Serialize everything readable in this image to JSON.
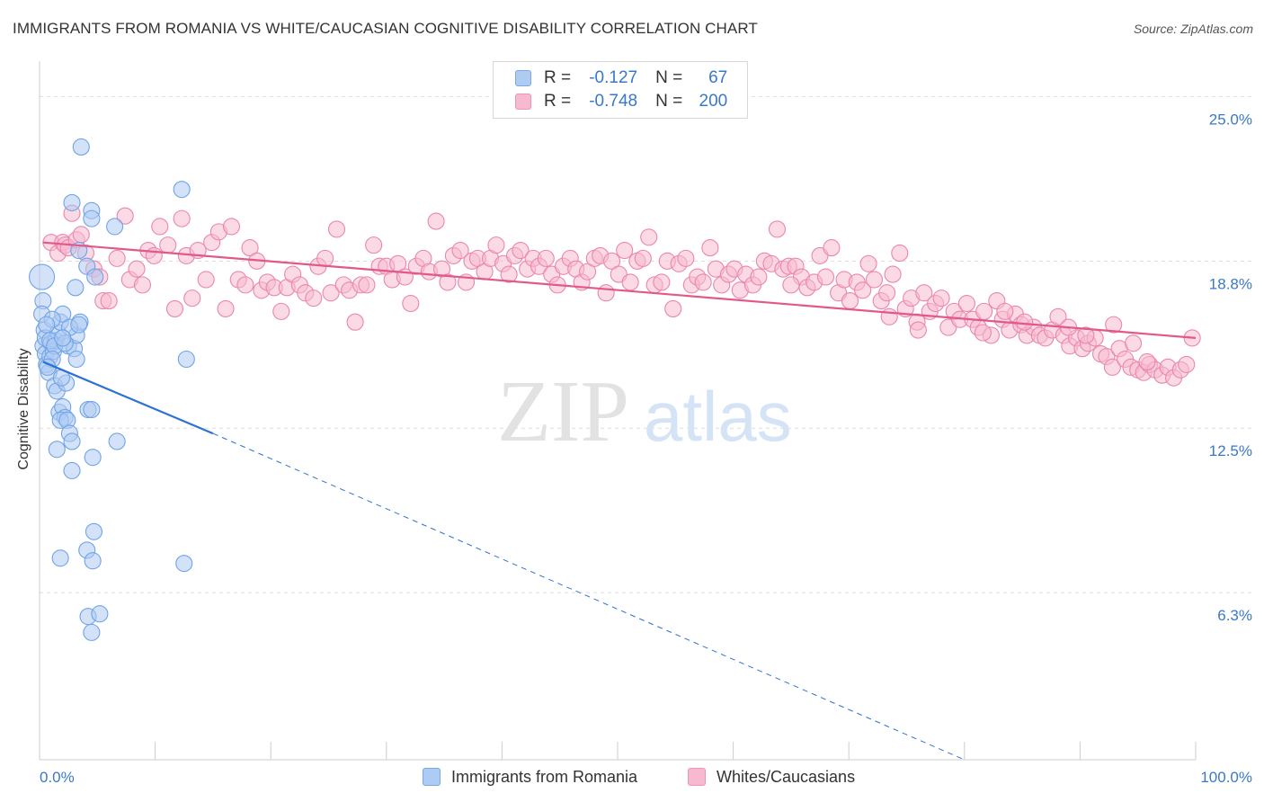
{
  "header": {
    "title": "IMMIGRANTS FROM ROMANIA VS WHITE/CAUCASIAN COGNITIVE DISABILITY CORRELATION CHART",
    "source": "Source: ZipAtlas.com"
  },
  "watermark": {
    "zip": "ZIP",
    "atlas": "atlas"
  },
  "legend": {
    "rows": [
      {
        "r_key": "R =",
        "r_value": "-0.127",
        "n_key": "N =",
        "n_value": "67",
        "color": "#aecbf2"
      },
      {
        "r_key": "R =",
        "r_value": "-0.748",
        "n_key": "N =",
        "n_value": "200",
        "color": "#f7b9cf"
      }
    ]
  },
  "bottom_legend": {
    "items": [
      {
        "label": "Immigrants from Romania",
        "color": "#aecbf2"
      },
      {
        "label": "Whites/Caucasians",
        "color": "#f7b9cf"
      }
    ]
  },
  "chart_data": {
    "type": "scatter",
    "title": "IMMIGRANTS FROM ROMANIA VS WHITE/CAUCASIAN COGNITIVE DISABILITY CORRELATION CHART",
    "xlabel": "",
    "ylabel": "Cognitive Disability",
    "xlim": [
      0,
      100
    ],
    "ylim": [
      0,
      26.2
    ],
    "x_tick_labels": [
      "0.0%",
      "100.0%"
    ],
    "y_ticks": [
      {
        "value": 6.3,
        "label": "6.3%"
      },
      {
        "value": 12.5,
        "label": "12.5%"
      },
      {
        "value": 18.8,
        "label": "18.8%"
      },
      {
        "value": 25.0,
        "label": "25.0%"
      }
    ],
    "grid": "horizontal dashed",
    "legend_position": "top-center",
    "series": [
      {
        "name": "Immigrants from Romania",
        "color": "#6fa4e6",
        "fill": "#aecbf2",
        "trend": {
          "x0": 0.3,
          "y0": 15.0,
          "x1": 15.0,
          "y1": 12.3,
          "dashed_to_x": 80.0,
          "dashed_to_y": 0.0,
          "color": "#2c72d4"
        },
        "points": [
          [
            0.2,
            18.2
          ],
          [
            0.3,
            17.3
          ],
          [
            0.2,
            16.8
          ],
          [
            0.4,
            16.2
          ],
          [
            0.3,
            15.6
          ],
          [
            0.5,
            15.3
          ],
          [
            0.6,
            14.9
          ],
          [
            0.8,
            14.6
          ],
          [
            0.5,
            15.9
          ],
          [
            0.9,
            15.2
          ],
          [
            1.0,
            15.7
          ],
          [
            1.2,
            15.4
          ],
          [
            1.4,
            15.8
          ],
          [
            1.6,
            16.1
          ],
          [
            1.8,
            16.5
          ],
          [
            2.0,
            16.8
          ],
          [
            1.1,
            16.6
          ],
          [
            1.3,
            14.1
          ],
          [
            1.5,
            13.9
          ],
          [
            1.7,
            13.1
          ],
          [
            2.0,
            13.3
          ],
          [
            2.2,
            12.9
          ],
          [
            1.8,
            12.8
          ],
          [
            2.4,
            12.8
          ],
          [
            2.6,
            12.3
          ],
          [
            2.8,
            12.0
          ],
          [
            2.3,
            14.2
          ],
          [
            2.5,
            15.6
          ],
          [
            3.0,
            15.5
          ],
          [
            3.2,
            16.0
          ],
          [
            3.5,
            16.5
          ],
          [
            3.4,
            19.2
          ],
          [
            3.1,
            17.8
          ],
          [
            3.6,
            23.1
          ],
          [
            2.8,
            21.0
          ],
          [
            4.5,
            20.7
          ],
          [
            4.5,
            20.4
          ],
          [
            4.1,
            18.6
          ],
          [
            4.8,
            18.2
          ],
          [
            6.5,
            20.1
          ],
          [
            3.2,
            15.1
          ],
          [
            4.2,
            13.2
          ],
          [
            4.5,
            13.2
          ],
          [
            1.5,
            11.7
          ],
          [
            4.6,
            11.4
          ],
          [
            2.8,
            10.9
          ],
          [
            6.7,
            12.0
          ],
          [
            12.3,
            21.5
          ],
          [
            12.7,
            15.1
          ],
          [
            4.7,
            8.6
          ],
          [
            4.1,
            7.9
          ],
          [
            1.8,
            7.6
          ],
          [
            4.6,
            7.5
          ],
          [
            12.5,
            7.4
          ],
          [
            4.2,
            5.4
          ],
          [
            5.2,
            5.5
          ],
          [
            4.5,
            4.8
          ],
          [
            0.9,
            15.8
          ],
          [
            1.3,
            15.6
          ],
          [
            2.2,
            15.7
          ],
          [
            0.6,
            16.4
          ],
          [
            1.1,
            15.1
          ],
          [
            2.6,
            16.3
          ],
          [
            1.9,
            14.4
          ],
          [
            3.4,
            16.4
          ],
          [
            2.0,
            15.9
          ],
          [
            0.7,
            14.8
          ]
        ]
      },
      {
        "name": "Whites/Caucasians",
        "color": "#eb86ab",
        "fill": "#f7b9cf",
        "trend": {
          "x0": 0.3,
          "y0": 19.5,
          "x1": 100.0,
          "y1": 15.9,
          "color": "#e2588a"
        },
        "points": [
          [
            1.0,
            19.5
          ],
          [
            1.6,
            19.1
          ],
          [
            2.0,
            19.5
          ],
          [
            2.2,
            19.4
          ],
          [
            2.5,
            19.3
          ],
          [
            2.8,
            20.6
          ],
          [
            3.2,
            19.6
          ],
          [
            3.6,
            19.8
          ],
          [
            4.0,
            19.1
          ],
          [
            4.7,
            18.5
          ],
          [
            5.2,
            18.2
          ],
          [
            5.5,
            17.3
          ],
          [
            6.0,
            17.3
          ],
          [
            6.7,
            18.9
          ],
          [
            7.4,
            20.5
          ],
          [
            7.8,
            18.1
          ],
          [
            8.4,
            18.5
          ],
          [
            8.9,
            17.9
          ],
          [
            9.4,
            19.2
          ],
          [
            9.9,
            19.0
          ],
          [
            10.4,
            20.1
          ],
          [
            11.1,
            19.4
          ],
          [
            11.7,
            17.0
          ],
          [
            12.3,
            20.4
          ],
          [
            12.7,
            19.0
          ],
          [
            13.2,
            17.4
          ],
          [
            13.7,
            19.2
          ],
          [
            14.4,
            18.1
          ],
          [
            14.9,
            19.5
          ],
          [
            15.5,
            19.9
          ],
          [
            16.1,
            17.0
          ],
          [
            16.6,
            20.1
          ],
          [
            17.2,
            18.1
          ],
          [
            17.8,
            17.9
          ],
          [
            18.2,
            19.3
          ],
          [
            18.8,
            18.8
          ],
          [
            19.2,
            17.7
          ],
          [
            19.7,
            18.0
          ],
          [
            20.3,
            17.8
          ],
          [
            20.9,
            16.9
          ],
          [
            21.4,
            17.8
          ],
          [
            21.9,
            18.3
          ],
          [
            22.5,
            17.9
          ],
          [
            23.0,
            17.6
          ],
          [
            23.7,
            17.4
          ],
          [
            24.1,
            18.6
          ],
          [
            24.7,
            18.9
          ],
          [
            25.2,
            17.6
          ],
          [
            25.7,
            20.0
          ],
          [
            26.3,
            17.9
          ],
          [
            26.8,
            17.7
          ],
          [
            27.3,
            16.5
          ],
          [
            27.8,
            17.9
          ],
          [
            28.3,
            17.9
          ],
          [
            28.9,
            19.4
          ],
          [
            29.4,
            18.6
          ],
          [
            30.0,
            18.6
          ],
          [
            30.5,
            18.1
          ],
          [
            31.0,
            18.7
          ],
          [
            31.6,
            18.2
          ],
          [
            32.1,
            17.2
          ],
          [
            32.6,
            18.6
          ],
          [
            33.2,
            18.9
          ],
          [
            33.7,
            18.4
          ],
          [
            34.3,
            20.3
          ],
          [
            34.8,
            18.5
          ],
          [
            35.3,
            18.0
          ],
          [
            35.8,
            19.0
          ],
          [
            36.4,
            19.2
          ],
          [
            36.9,
            18.0
          ],
          [
            37.4,
            18.8
          ],
          [
            37.9,
            18.9
          ],
          [
            38.5,
            18.4
          ],
          [
            39.0,
            18.9
          ],
          [
            39.5,
            19.4
          ],
          [
            40.1,
            18.7
          ],
          [
            40.6,
            18.3
          ],
          [
            41.1,
            19.0
          ],
          [
            41.6,
            19.2
          ],
          [
            42.2,
            18.5
          ],
          [
            42.7,
            18.9
          ],
          [
            43.2,
            18.6
          ],
          [
            43.8,
            18.9
          ],
          [
            44.3,
            18.3
          ],
          [
            44.8,
            17.9
          ],
          [
            45.3,
            18.6
          ],
          [
            45.9,
            18.9
          ],
          [
            46.4,
            18.5
          ],
          [
            46.9,
            18.0
          ],
          [
            47.4,
            18.4
          ],
          [
            48.0,
            18.9
          ],
          [
            48.5,
            19.0
          ],
          [
            49.0,
            17.6
          ],
          [
            49.5,
            18.8
          ],
          [
            50.1,
            18.3
          ],
          [
            50.6,
            19.2
          ],
          [
            51.1,
            18.0
          ],
          [
            51.7,
            18.8
          ],
          [
            52.2,
            18.9
          ],
          [
            52.7,
            19.7
          ],
          [
            53.2,
            17.9
          ],
          [
            53.8,
            18.0
          ],
          [
            54.3,
            18.8
          ],
          [
            54.8,
            17.0
          ],
          [
            55.3,
            18.7
          ],
          [
            55.9,
            18.9
          ],
          [
            56.4,
            17.9
          ],
          [
            56.9,
            18.2
          ],
          [
            57.4,
            18.0
          ],
          [
            58.0,
            19.3
          ],
          [
            58.5,
            18.5
          ],
          [
            59.0,
            17.9
          ],
          [
            59.6,
            18.3
          ],
          [
            60.1,
            18.5
          ],
          [
            60.6,
            17.7
          ],
          [
            61.1,
            18.3
          ],
          [
            61.7,
            17.9
          ],
          [
            62.2,
            18.2
          ],
          [
            62.7,
            18.8
          ],
          [
            63.3,
            18.7
          ],
          [
            63.8,
            20.0
          ],
          [
            64.3,
            18.5
          ],
          [
            64.8,
            18.6
          ],
          [
            65.4,
            18.6
          ],
          [
            65.9,
            18.2
          ],
          [
            66.4,
            17.8
          ],
          [
            67.0,
            18.0
          ],
          [
            67.5,
            19.0
          ],
          [
            68.0,
            18.2
          ],
          [
            68.5,
            19.3
          ],
          [
            69.1,
            17.6
          ],
          [
            69.6,
            18.1
          ],
          [
            70.1,
            17.3
          ],
          [
            70.7,
            18.0
          ],
          [
            71.2,
            17.7
          ],
          [
            71.7,
            18.7
          ],
          [
            72.2,
            18.1
          ],
          [
            72.8,
            17.3
          ],
          [
            73.3,
            17.6
          ],
          [
            73.8,
            18.3
          ],
          [
            74.4,
            19.1
          ],
          [
            74.9,
            17.0
          ],
          [
            75.4,
            17.4
          ],
          [
            75.9,
            16.5
          ],
          [
            76.5,
            17.6
          ],
          [
            77.0,
            16.9
          ],
          [
            77.5,
            17.2
          ],
          [
            78.0,
            17.4
          ],
          [
            78.6,
            16.3
          ],
          [
            79.1,
            16.9
          ],
          [
            79.6,
            16.6
          ],
          [
            80.2,
            17.2
          ],
          [
            80.7,
            16.6
          ],
          [
            81.2,
            16.3
          ],
          [
            81.7,
            16.9
          ],
          [
            82.3,
            16.0
          ],
          [
            82.8,
            17.3
          ],
          [
            83.3,
            16.6
          ],
          [
            83.9,
            16.2
          ],
          [
            84.4,
            16.8
          ],
          [
            84.9,
            16.4
          ],
          [
            85.4,
            16.0
          ],
          [
            86.0,
            16.3
          ],
          [
            86.5,
            16.0
          ],
          [
            87.0,
            15.9
          ],
          [
            87.6,
            16.2
          ],
          [
            88.1,
            16.7
          ],
          [
            88.6,
            16.0
          ],
          [
            89.1,
            15.6
          ],
          [
            89.7,
            15.9
          ],
          [
            90.2,
            15.5
          ],
          [
            90.7,
            15.7
          ],
          [
            91.3,
            15.9
          ],
          [
            91.8,
            15.3
          ],
          [
            92.3,
            15.2
          ],
          [
            92.8,
            14.8
          ],
          [
            93.4,
            15.5
          ],
          [
            93.9,
            15.1
          ],
          [
            94.4,
            14.8
          ],
          [
            95.0,
            14.7
          ],
          [
            95.5,
            14.6
          ],
          [
            96.0,
            14.9
          ],
          [
            96.5,
            14.7
          ],
          [
            97.1,
            14.5
          ],
          [
            97.6,
            14.8
          ],
          [
            98.1,
            14.4
          ],
          [
            98.7,
            14.7
          ],
          [
            99.2,
            14.9
          ],
          [
            99.7,
            15.9
          ],
          [
            76.0,
            16.2
          ],
          [
            81.6,
            16.1
          ],
          [
            85.2,
            16.5
          ],
          [
            90.5,
            16.0
          ],
          [
            94.6,
            15.7
          ],
          [
            89.0,
            16.3
          ],
          [
            73.5,
            16.7
          ],
          [
            65.0,
            17.9
          ],
          [
            92.9,
            16.4
          ],
          [
            83.5,
            16.9
          ],
          [
            95.8,
            15.0
          ]
        ]
      }
    ]
  }
}
